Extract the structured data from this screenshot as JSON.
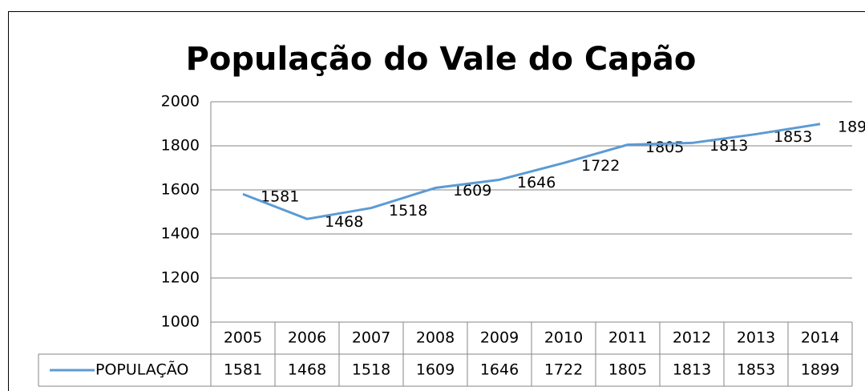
{
  "chart_data": {
    "type": "line",
    "title": "População do Vale do Capão",
    "categories": [
      "2005",
      "2006",
      "2007",
      "2008",
      "2009",
      "2010",
      "2011",
      "2012",
      "2013",
      "2014"
    ],
    "series": [
      {
        "name": "POPULAÇÃO",
        "color": "#5b9bd5",
        "values": [
          1581,
          1468,
          1518,
          1609,
          1646,
          1722,
          1805,
          1813,
          1853,
          1899
        ]
      }
    ],
    "ylim": [
      1000,
      2000
    ],
    "yticks": [
      1000,
      1200,
      1400,
      1600,
      1800,
      2000
    ],
    "grid": true,
    "data_table": true
  }
}
